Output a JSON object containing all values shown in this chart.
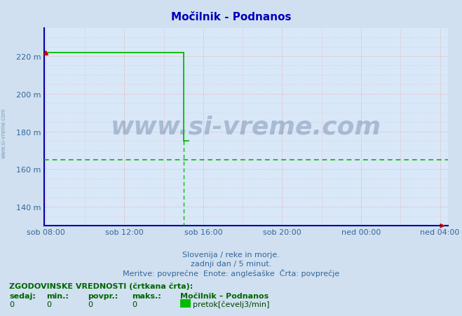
{
  "title": "Močilnik - Podnanos",
  "bg_color": "#d0e0f0",
  "plot_bg_color": "#d8e8f8",
  "line_color": "#00bb00",
  "avg_line_color": "#00bb00",
  "avg_line_value": 165,
  "ylim": [
    130,
    230
  ],
  "ylim_display_min": 130,
  "yticks": [
    140,
    160,
    180,
    200,
    220
  ],
  "ytick_labels": [
    "140 m",
    "160 m",
    "180 m",
    "200 m",
    "220 m"
  ],
  "xlim_start": 0,
  "xlim_end": 1200,
  "xtick_positions": [
    0,
    240,
    480,
    720,
    960,
    1200
  ],
  "xtick_labels": [
    "sob 08:00",
    "sob 12:00",
    "sob 16:00",
    "sob 20:00",
    "ned 00:00",
    "ned 04:00"
  ],
  "data_high_x_start": 0,
  "data_high_x_end": 420,
  "data_high_y": 222,
  "data_drop_x": 420,
  "data_low_y": 175,
  "watermark": "www.si-vreme.com",
  "subtitle1": "Slovenija / reke in morje.",
  "subtitle2": "zadnji dan / 5 minut.",
  "subtitle3": "Meritve: povprečne  Enote: anglešaške  Črta: povprečje",
  "footer_title": "ZGODOVINSKE VREDNOSTI (črtkana črta):",
  "footer_col0": "sedaj:",
  "footer_col1": "min.:",
  "footer_col2": "povpr.:",
  "footer_col3": "maks.:",
  "footer_val0": "0",
  "footer_val1": "0",
  "footer_val2": "0",
  "footer_val3": "0",
  "legend_station": "Močilnik – Podnanos",
  "legend_series": "pretok[čevelj3/min]",
  "legend_color": "#00bb00",
  "axis_color": "#0000aa",
  "arrow_color": "#cc0000",
  "title_color": "#0000bb",
  "tick_color": "#336699",
  "subtitle_color": "#336699",
  "footer_color_bold": "#006600",
  "footer_color_normal": "#004400",
  "watermark_color": "#1a3a6a",
  "watermark_alpha": 0.25,
  "grid_color": "#ee9999",
  "grid_alpha": 0.8
}
